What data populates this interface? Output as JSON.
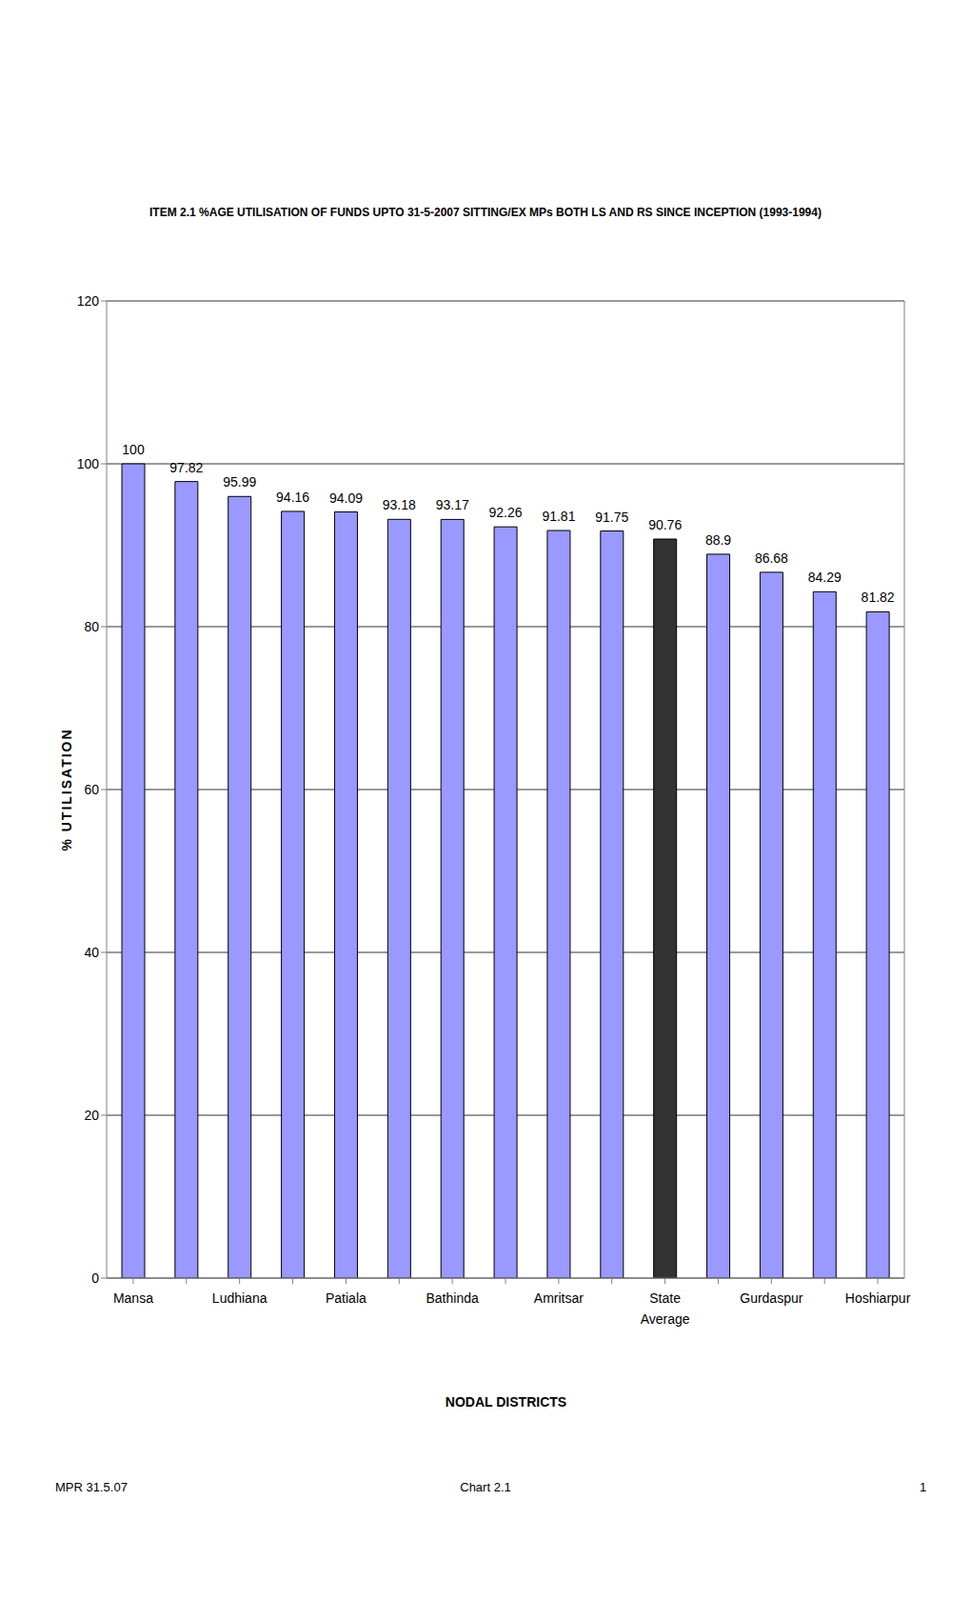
{
  "chart_data": {
    "type": "bar",
    "title": "ITEM 2.1 %AGE UTILISATION OF FUNDS UPTO 31-5-2007 SITTING/EX MPs BOTH LS AND RS SINCE INCEPTION (1993-1994)",
    "x_label": "NODAL DISTRICTS",
    "y_label": "% UTILISATION",
    "annotations": [
      "MPR 31.5.07",
      "Chart 2.1",
      "1"
    ],
    "categories": [
      "Mansa",
      null,
      "Ludhiana",
      null,
      "Patiala",
      null,
      "Bathinda",
      null,
      "Amritsar",
      null,
      "State Average",
      null,
      "Gurdaspur",
      null,
      "Hoshiarpur"
    ],
    "values": [
      100,
      97.82,
      95.99,
      94.16,
      94.09,
      93.18,
      93.17,
      92.26,
      91.81,
      91.75,
      90.76,
      88.9,
      86.68,
      84.29,
      81.82
    ],
    "colors": [
      "#9999ff",
      "#9999ff",
      "#9999ff",
      "#9999ff",
      "#9999ff",
      "#9999ff",
      "#9999ff",
      "#9999ff",
      "#9999ff",
      "#9999ff",
      "#333333",
      "#9999ff",
      "#9999ff",
      "#9999ff",
      "#9999ff"
    ],
    "ylim": [
      0,
      120
    ],
    "yticks": [
      0,
      20,
      40,
      60,
      80,
      100,
      120
    ],
    "grid": true,
    "data_labels": true
  }
}
